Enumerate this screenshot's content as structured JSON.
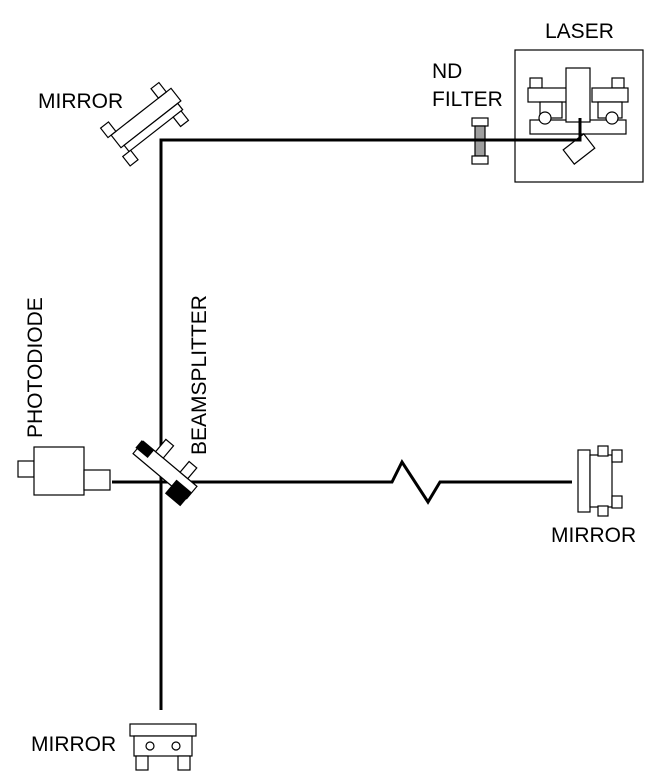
{
  "labels": {
    "laser": "LASER",
    "nd_filter_line1": "ND",
    "nd_filter_line2": "FILTER",
    "mirror_top_left": "MIRROR",
    "photodiode": "PHOTODIODE",
    "beamsplitter": "BEAMSPLITTER",
    "mirror_right": "MIRROR",
    "mirror_bottom": "MIRROR"
  },
  "colors": {
    "line": "#000000",
    "background": "#ffffff",
    "filter_fill": "#9e9e9e"
  }
}
